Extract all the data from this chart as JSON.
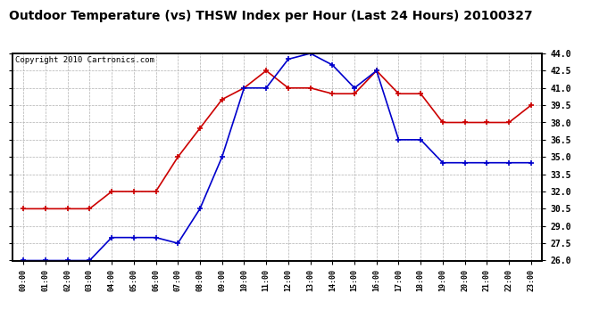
{
  "title": "Outdoor Temperature (vs) THSW Index per Hour (Last 24 Hours) 20100327",
  "copyright": "Copyright 2010 Cartronics.com",
  "hours": [
    "00:00",
    "01:00",
    "02:00",
    "03:00",
    "04:00",
    "05:00",
    "06:00",
    "07:00",
    "08:00",
    "09:00",
    "10:00",
    "11:00",
    "12:00",
    "13:00",
    "14:00",
    "15:00",
    "16:00",
    "17:00",
    "18:00",
    "19:00",
    "20:00",
    "21:00",
    "22:00",
    "23:00"
  ],
  "temp_blue": [
    26.0,
    26.0,
    26.0,
    26.0,
    28.0,
    28.0,
    28.0,
    27.5,
    30.5,
    35.0,
    41.0,
    41.0,
    43.5,
    44.0,
    43.0,
    41.0,
    42.5,
    36.5,
    36.5,
    34.5,
    34.5,
    34.5,
    34.5,
    34.5
  ],
  "thsw_red": [
    30.5,
    30.5,
    30.5,
    30.5,
    32.0,
    32.0,
    32.0,
    35.0,
    37.5,
    40.0,
    41.0,
    42.5,
    41.0,
    41.0,
    40.5,
    40.5,
    42.5,
    40.5,
    40.5,
    38.0,
    38.0,
    38.0,
    38.0,
    39.5
  ],
  "ylim": [
    26.0,
    44.0
  ],
  "yticks": [
    26.0,
    27.5,
    29.0,
    30.5,
    32.0,
    33.5,
    35.0,
    36.5,
    38.0,
    39.5,
    41.0,
    42.5,
    44.0
  ],
  "blue_color": "#0000cc",
  "red_color": "#cc0000",
  "bg_color": "#ffffff",
  "plot_bg": "#ffffff",
  "grid_color": "#b0b0b0",
  "title_fontsize": 10,
  "copyright_fontsize": 6.5
}
